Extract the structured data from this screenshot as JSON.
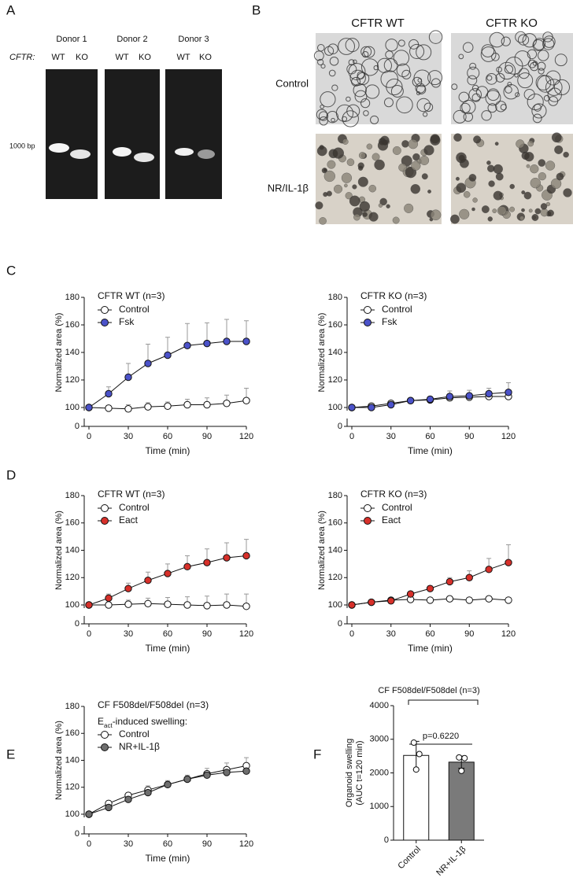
{
  "panel_labels": [
    "A",
    "B",
    "C",
    "D",
    "E",
    "F"
  ],
  "gel": {
    "donors": [
      "Donor 1",
      "Donor 2",
      "Donor 3"
    ],
    "gene_label": "CFTR:",
    "lanes": [
      "WT",
      "KO"
    ],
    "marker": "1000 bp"
  },
  "micrographs": {
    "columns": [
      "CFTR WT",
      "CFTR KO"
    ],
    "rows": [
      "Control",
      "NR/IL-1β"
    ]
  },
  "chart_data": [
    {
      "type": "line",
      "title": "CFTR WT (n=3)",
      "xlabel": "Time (min)",
      "ylabel": "Normalized area (%)",
      "x": [
        0,
        15,
        30,
        45,
        60,
        75,
        90,
        105,
        120
      ],
      "xlim": [
        0,
        120
      ],
      "xticks": [
        0,
        30,
        60,
        90,
        120
      ],
      "ylim": [
        0,
        180
      ],
      "axis_break": [
        0,
        100
      ],
      "yticks": [
        0,
        100,
        120,
        140,
        160,
        180
      ],
      "series": [
        {
          "name": "Control",
          "color": "#ffffff",
          "values": [
            100,
            99.5,
            99,
            100.5,
            101,
            102,
            102,
            103,
            105
          ],
          "errors": [
            0,
            2,
            3,
            3,
            3,
            4,
            5,
            6,
            9
          ]
        },
        {
          "name": "Fsk",
          "color": "#4b52c9",
          "values": [
            100,
            110,
            122,
            132,
            138,
            145,
            146.5,
            148,
            148
          ],
          "errors": [
            0,
            5,
            10,
            14,
            13,
            16,
            15,
            16,
            15
          ]
        }
      ]
    },
    {
      "type": "line",
      "title": "CFTR KO (n=3)",
      "xlabel": "Time (min)",
      "ylabel": "Normalized area (%)",
      "x": [
        0,
        15,
        30,
        45,
        60,
        75,
        90,
        105,
        120
      ],
      "xlim": [
        0,
        120
      ],
      "xticks": [
        0,
        30,
        60,
        90,
        120
      ],
      "ylim": [
        0,
        180
      ],
      "axis_break": [
        0,
        100
      ],
      "yticks": [
        0,
        100,
        120,
        140,
        160,
        180
      ],
      "series": [
        {
          "name": "Control",
          "color": "#ffffff",
          "values": [
            100,
            101,
            103,
            105,
            105.5,
            107,
            107.5,
            108,
            108
          ],
          "errors": [
            0,
            1,
            1,
            1,
            1,
            2,
            2,
            2,
            2
          ]
        },
        {
          "name": "Fsk",
          "color": "#4b52c9",
          "values": [
            100,
            100,
            102,
            105,
            106,
            108,
            108.5,
            110,
            111
          ],
          "errors": [
            0,
            1,
            1,
            1,
            2,
            4,
            4,
            4,
            7
          ]
        }
      ]
    },
    {
      "type": "line",
      "title": "CFTR WT (n=3)",
      "xlabel": "Time (min)",
      "ylabel": "Normalized area (%)",
      "x": [
        0,
        15,
        30,
        45,
        60,
        75,
        90,
        105,
        120
      ],
      "xlim": [
        0,
        120
      ],
      "xticks": [
        0,
        30,
        60,
        90,
        120
      ],
      "ylim": [
        0,
        180
      ],
      "axis_break": [
        0,
        100
      ],
      "yticks": [
        0,
        100,
        120,
        140,
        160,
        180
      ],
      "series": [
        {
          "name": "Control",
          "color": "#ffffff",
          "values": [
            100,
            100,
            100.5,
            101,
            100.5,
            100,
            99.5,
            100,
            99
          ],
          "errors": [
            0,
            2,
            3,
            4,
            5,
            6,
            7,
            8,
            9
          ]
        },
        {
          "name": "Eact",
          "color": "#d7302a",
          "values": [
            100,
            105,
            112,
            118,
            123,
            128,
            131,
            134.5,
            136
          ],
          "errors": [
            0,
            3,
            4,
            6,
            7,
            8,
            10,
            11,
            12
          ]
        }
      ]
    },
    {
      "type": "line",
      "title": "CFTR KO (n=3)",
      "xlabel": "Time (min)",
      "ylabel": "Normalized area (%)",
      "x": [
        0,
        15,
        30,
        45,
        60,
        75,
        90,
        105,
        120
      ],
      "xlim": [
        0,
        120
      ],
      "xticks": [
        0,
        30,
        60,
        90,
        120
      ],
      "ylim": [
        0,
        180
      ],
      "axis_break": [
        0,
        100
      ],
      "yticks": [
        0,
        100,
        120,
        140,
        160,
        180
      ],
      "series": [
        {
          "name": "Control",
          "color": "#ffffff",
          "values": [
            100,
            102,
            103.5,
            104,
            103.5,
            104.5,
            103.5,
            104.5,
            103.5
          ],
          "errors": [
            0,
            1,
            1,
            1,
            1,
            1,
            1,
            1,
            1
          ]
        },
        {
          "name": "Eact",
          "color": "#d7302a",
          "values": [
            100,
            102,
            103,
            108,
            112,
            117,
            120,
            126,
            131
          ],
          "errors": [
            0,
            1,
            1,
            1,
            2,
            3,
            5,
            8,
            13
          ]
        }
      ]
    },
    {
      "type": "line",
      "title": "CF F508del/F508del (n=3)",
      "legend_title": [
        "E",
        "act",
        "-induced swelling:"
      ],
      "xlabel": "Time (min)",
      "ylabel": "Normalized area (%)",
      "x": [
        0,
        15,
        30,
        45,
        60,
        75,
        90,
        105,
        120
      ],
      "xlim": [
        0,
        120
      ],
      "xticks": [
        0,
        30,
        60,
        90,
        120
      ],
      "ylim": [
        0,
        180
      ],
      "axis_break": [
        0,
        100
      ],
      "yticks": [
        0,
        100,
        120,
        140,
        160,
        180
      ],
      "series": [
        {
          "name": "Control",
          "color": "#ffffff",
          "values": [
            100,
            108,
            114,
            118,
            122,
            126,
            130,
            133,
            136
          ],
          "errors": [
            0,
            2,
            2,
            3,
            3,
            3,
            4,
            5,
            6
          ]
        },
        {
          "name": "NR+IL-1β",
          "color": "#6e6e6e",
          "values": [
            100,
            105,
            111,
            116,
            122,
            126,
            129,
            131,
            132
          ],
          "errors": [
            0,
            2,
            2,
            2,
            2,
            2,
            2,
            3,
            3
          ]
        }
      ]
    },
    {
      "type": "bar",
      "title": "CF F508del/F508del (n=3)",
      "ylabel": [
        "Organoid swelling",
        "(AUC t=120 min)"
      ],
      "annotation": "p=0.6220",
      "categories": [
        "Control",
        "NR+IL-1β"
      ],
      "colors": [
        "#ffffff",
        "#7a7a7a"
      ],
      "values": [
        2520,
        2320
      ],
      "errors": [
        420,
        180
      ],
      "points": [
        [
          2900,
          2560,
          2100
        ],
        [
          2460,
          2440,
          2060
        ]
      ],
      "ylim": [
        0,
        4000
      ],
      "yticks": [
        0,
        1000,
        2000,
        3000,
        4000
      ]
    }
  ]
}
